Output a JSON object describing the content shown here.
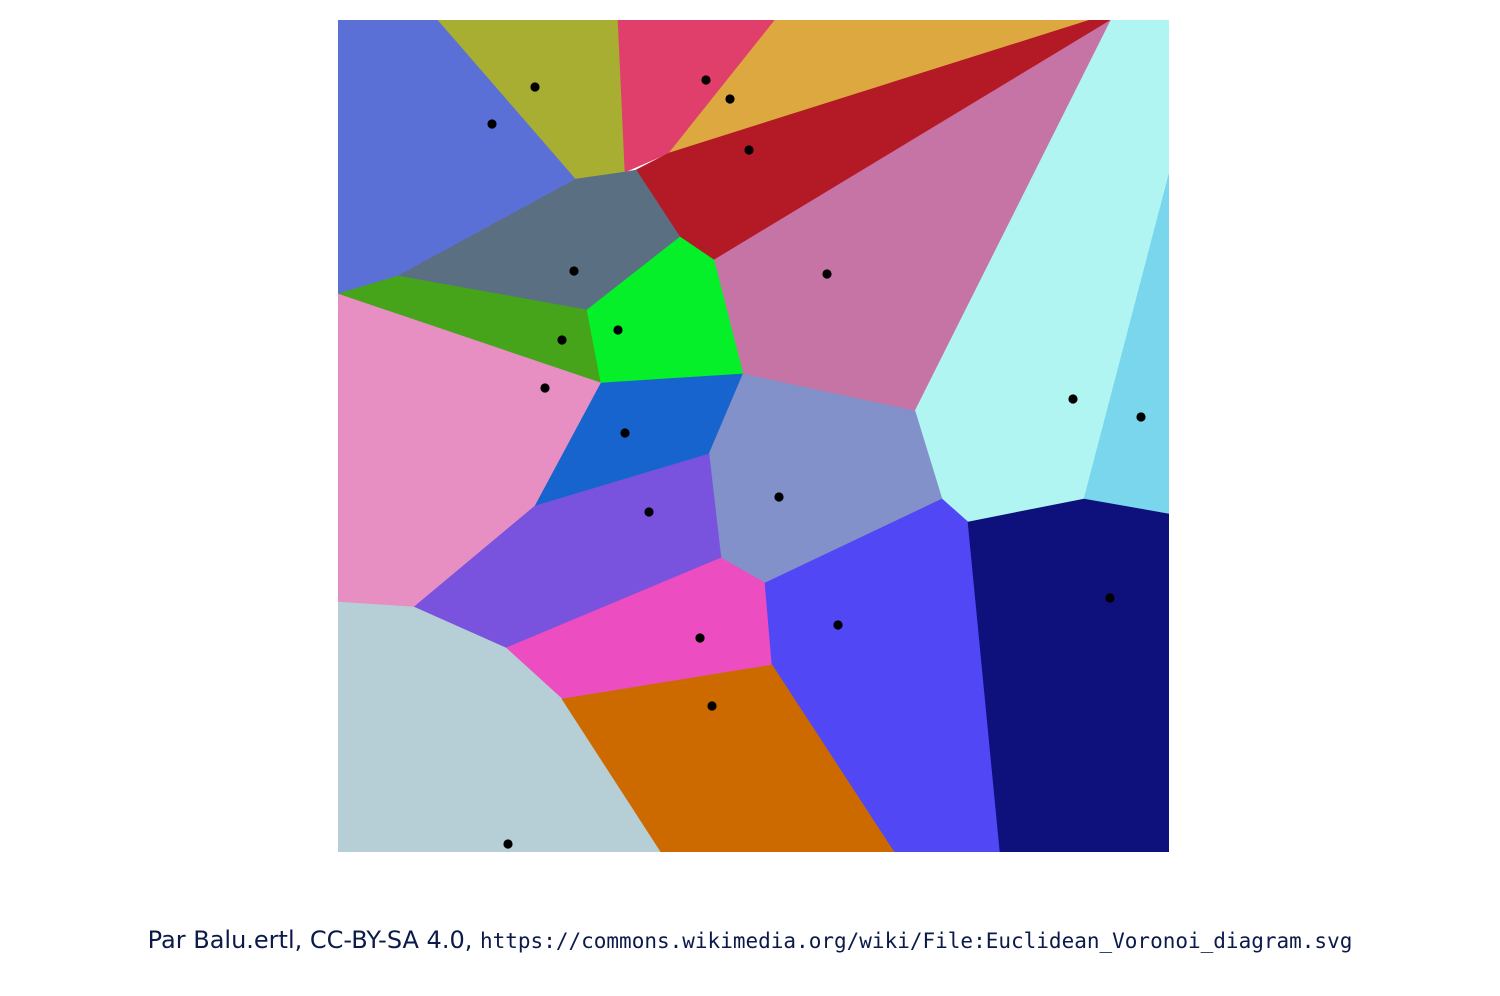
{
  "diagram": {
    "cells": [
      {
        "name": "cell-royal-blue",
        "color": "#5a70d6"
      },
      {
        "name": "cell-olive",
        "color": "#a8ae32"
      },
      {
        "name": "cell-raspberry",
        "color": "#df3f6a"
      },
      {
        "name": "cell-mustard",
        "color": "#dca83f"
      },
      {
        "name": "cell-crimson",
        "color": "#b31a26"
      },
      {
        "name": "cell-mauve",
        "color": "#c673a6"
      },
      {
        "name": "cell-pale-cyan",
        "color": "#b0f5f2"
      },
      {
        "name": "cell-sky-blue",
        "color": "#7ad6ec"
      },
      {
        "name": "cell-slate",
        "color": "#5b6f83"
      },
      {
        "name": "cell-leaf-green",
        "color": "#45a41a"
      },
      {
        "name": "cell-bright-green",
        "color": "#06f02a"
      },
      {
        "name": "cell-pink",
        "color": "#e78ec3"
      },
      {
        "name": "cell-blue",
        "color": "#1864ce"
      },
      {
        "name": "cell-periwinkle",
        "color": "#8291c9"
      },
      {
        "name": "cell-violet",
        "color": "#7953dd"
      },
      {
        "name": "cell-magenta",
        "color": "#ec4dc1"
      },
      {
        "name": "cell-indigo",
        "color": "#5147f5"
      },
      {
        "name": "cell-navy",
        "color": "#0e107c"
      },
      {
        "name": "cell-light-gray",
        "color": "#b6ced6"
      },
      {
        "name": "cell-orange",
        "color": "#cc6a00"
      }
    ],
    "site_color": "#000000"
  },
  "credit": {
    "prefix": "Par Balu.ertl, CC-BY-SA 4.0,",
    "url": "https://commons.wikimedia.org/wiki/File:Euclidean_Voronoi_diagram.svg"
  }
}
